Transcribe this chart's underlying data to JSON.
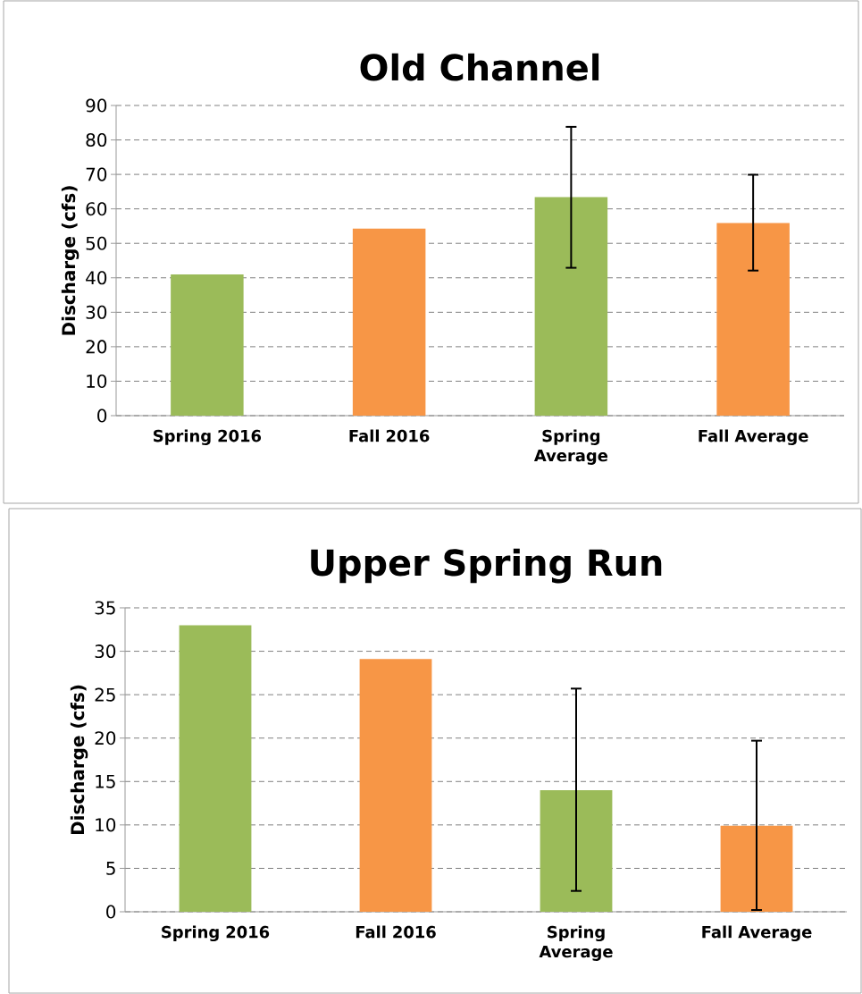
{
  "chart_data": [
    {
      "type": "bar",
      "title": "Old Channel",
      "ylabel": "Discharge (cfs)",
      "categories": [
        "Spring 2016",
        "Fall 2016",
        "Spring Average",
        "Fall Average"
      ],
      "values": [
        41,
        54.3,
        63.4,
        55.9
      ],
      "colors": [
        "#9bbb59",
        "#f79646",
        "#9bbb59",
        "#f79646"
      ],
      "errors": [
        null,
        null,
        [
          42.9,
          83.8
        ],
        [
          42.1,
          69.9
        ]
      ],
      "ylim": [
        0,
        90
      ],
      "yticks": [
        0,
        10,
        20,
        30,
        40,
        50,
        60,
        70,
        80,
        90
      ],
      "grid": "y"
    },
    {
      "type": "bar",
      "title": "Upper Spring Run",
      "ylabel": "Discharge (cfs)",
      "categories": [
        "Spring 2016",
        "Fall 2016",
        "Spring Average",
        "Fall Average"
      ],
      "values": [
        33,
        29.1,
        14,
        9.9
      ],
      "colors": [
        "#9bbb59",
        "#f79646",
        "#9bbb59",
        "#f79646"
      ],
      "errors": [
        null,
        null,
        [
          2.4,
          25.7
        ],
        [
          0.2,
          19.7
        ]
      ],
      "ylim": [
        0,
        35
      ],
      "yticks": [
        0,
        5,
        10,
        15,
        20,
        25,
        30,
        35
      ],
      "grid": "y"
    }
  ]
}
